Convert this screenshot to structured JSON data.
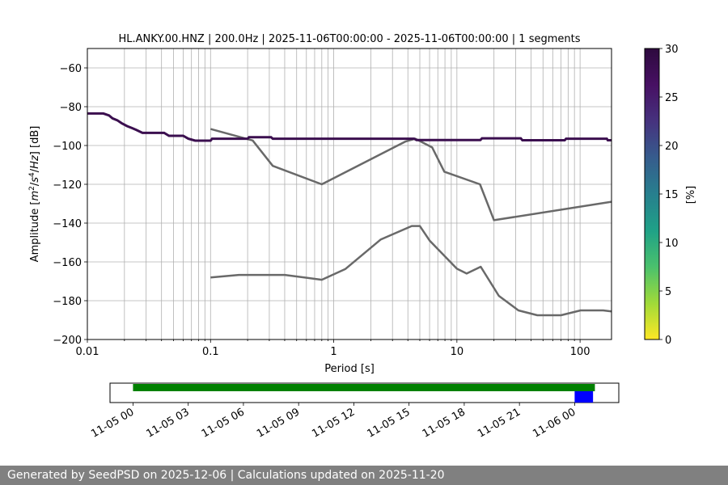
{
  "chart_data": {
    "type": "line",
    "title": "HL.ANKY.00.HNZ | 200.0Hz | 2025-11-06T00:00:00 - 2025-11-06T00:00:00 | 1 segments",
    "xlabel": "Period [s]",
    "ylabel_parts": [
      "Amplitude [",
      "m",
      "2",
      "/",
      "s",
      "4",
      "/",
      "Hz",
      "] [dB]"
    ],
    "xscale": "log",
    "xlim": [
      0.01,
      180
    ],
    "ylim": [
      -200,
      -50
    ],
    "x_tick_labels": [
      {
        "value": 0.01,
        "label": "0.01"
      },
      {
        "value": 0.1,
        "label": "0.1"
      },
      {
        "value": 1,
        "label": "1"
      },
      {
        "value": 10,
        "label": "10"
      },
      {
        "value": 100,
        "label": "100"
      }
    ],
    "y_ticks": [
      -200,
      -180,
      -160,
      -140,
      -120,
      -100,
      -80,
      -60
    ],
    "y_tick_labels": [
      "−200",
      "−180",
      "−160",
      "−140",
      "−120",
      "−100",
      "−80",
      "−60"
    ],
    "grid": true,
    "psd_series": {
      "color": "#3b0f4f",
      "points": [
        [
          0.01,
          -83.5
        ],
        [
          0.0135,
          -83.5
        ],
        [
          0.015,
          -84.5
        ],
        [
          0.016,
          -86
        ],
        [
          0.0175,
          -87
        ],
        [
          0.019,
          -88.5
        ],
        [
          0.021,
          -90
        ],
        [
          0.023,
          -91
        ],
        [
          0.025,
          -92
        ],
        [
          0.028,
          -93.5
        ],
        [
          0.042,
          -93.5
        ],
        [
          0.046,
          -95
        ],
        [
          0.06,
          -95
        ],
        [
          0.066,
          -96.5
        ],
        [
          0.075,
          -97.5
        ],
        [
          0.1,
          -97.5
        ],
        [
          0.103,
          -96.5
        ],
        [
          0.2,
          -96.5
        ],
        [
          0.205,
          -95.7
        ],
        [
          0.31,
          -95.7
        ],
        [
          0.32,
          -96.5
        ],
        [
          4.5,
          -96.5
        ],
        [
          4.7,
          -97.2
        ],
        [
          15.5,
          -97.2
        ],
        [
          16,
          -96.3
        ],
        [
          33,
          -96.3
        ],
        [
          34,
          -97.3
        ],
        [
          75,
          -97.3
        ],
        [
          77,
          -96.5
        ],
        [
          165,
          -96.5
        ],
        [
          168,
          -97.3
        ],
        [
          180,
          -97.3
        ]
      ]
    },
    "noise_models": [
      {
        "color": "#696969",
        "points": [
          [
            0.1,
            -91.5
          ],
          [
            0.22,
            -97.4
          ],
          [
            0.32,
            -110.5
          ],
          [
            0.8,
            -120
          ],
          [
            3.8,
            -98
          ],
          [
            4.6,
            -96.5
          ],
          [
            6.3,
            -101
          ],
          [
            7.9,
            -113.5
          ],
          [
            15.4,
            -120
          ],
          [
            20,
            -138.5
          ],
          [
            180,
            -129
          ]
        ]
      },
      {
        "color": "#696969",
        "points": [
          [
            0.1,
            -168
          ],
          [
            0.17,
            -166.7
          ],
          [
            0.4,
            -166.7
          ],
          [
            0.8,
            -169.2
          ],
          [
            1.24,
            -163.7
          ],
          [
            2.4,
            -148.5
          ],
          [
            4.3,
            -141.5
          ],
          [
            5,
            -141.5
          ],
          [
            6,
            -149
          ],
          [
            10,
            -163.5
          ],
          [
            12,
            -166
          ],
          [
            15.6,
            -162.5
          ],
          [
            21.9,
            -177.5
          ],
          [
            31.6,
            -185
          ],
          [
            45,
            -187.5
          ],
          [
            70,
            -187.5
          ],
          [
            101,
            -185
          ],
          [
            154,
            -185
          ],
          [
            180,
            -185.5
          ]
        ]
      }
    ],
    "colorbar": {
      "label": "[%]",
      "range": [
        0,
        30
      ],
      "ticks": [
        0,
        5,
        10,
        15,
        20,
        25,
        30
      ],
      "colormap": "viridis_r"
    },
    "availability": {
      "tick_labels": [
        "11-05 00",
        "11-05 03",
        "11-05 06",
        "11-05 09",
        "11-05 12",
        "11-05 15",
        "11-05 18",
        "11-05 21",
        "11-06 00"
      ],
      "tick_hours": [
        0,
        3,
        6,
        9,
        12,
        15,
        18,
        21,
        24
      ],
      "xlim_hours": [
        -1.25,
        26.4
      ],
      "data_span_hours": [
        0,
        25.1
      ],
      "data_color": "#008000",
      "selected_span_hours": [
        24.0,
        25.0
      ],
      "selected_color": "#0000ff"
    }
  },
  "footer": {
    "text": "Generated by SeedPSD on 2025-12-06 | Calculations updated on 2025-11-20"
  }
}
